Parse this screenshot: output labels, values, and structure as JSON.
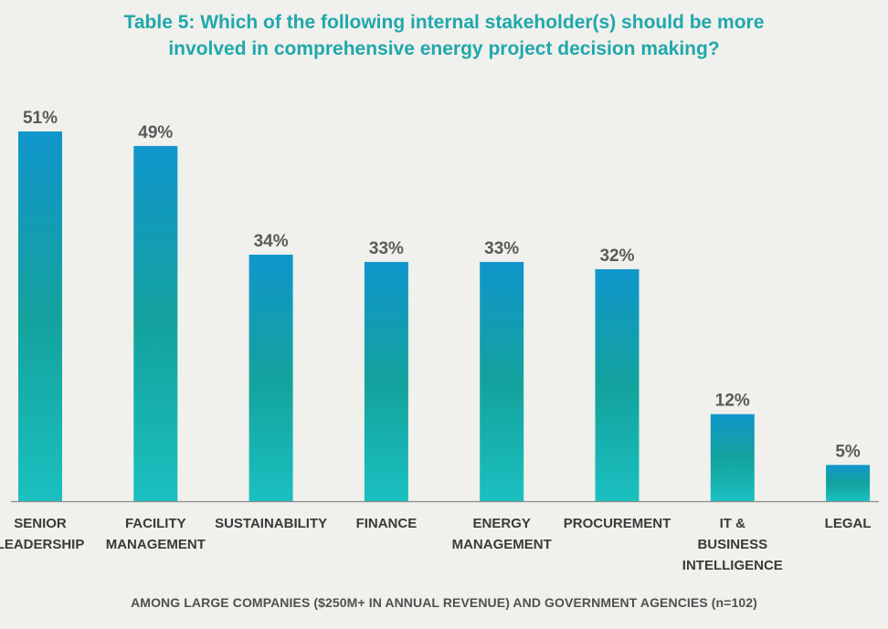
{
  "title_lines": [
    "Table 5: Which of the following internal stakeholder(s) should be more",
    "involved in comprehensive energy project decision making?"
  ],
  "footnote": "AMONG LARGE COMPANIES ($250M+ IN ANNUAL REVENUE) AND GOVERNMENT AGENCIES  (n=102)",
  "colors": {
    "title": "#1fa8ac",
    "bar_top": "#1096cc",
    "bar_mid": "#13a29d",
    "bar_bottom": "#1bc0c0",
    "value_label": "#5a5a5a",
    "category_label": "#3a3a3a",
    "baseline": "#8c8c8c"
  },
  "chart_data": {
    "type": "bar",
    "title": "Table 5: Which of the following internal stakeholder(s) should be more involved in comprehensive energy project decision making?",
    "categories": [
      [
        "SENIOR",
        "LEADERSHIP"
      ],
      [
        "FACILITY",
        "MANAGEMENT"
      ],
      [
        "SUSTAINABILITY"
      ],
      [
        "FINANCE"
      ],
      [
        "ENERGY",
        "MANAGEMENT"
      ],
      [
        "PROCUREMENT"
      ],
      [
        "IT &",
        "BUSINESS",
        "INTELLIGENCE"
      ],
      [
        "LEGAL"
      ]
    ],
    "values": [
      51,
      49,
      34,
      33,
      33,
      32,
      12,
      5
    ],
    "value_labels": [
      "51%",
      "49%",
      "34%",
      "33%",
      "33%",
      "32%",
      "12%",
      "5%"
    ],
    "xlabel": "",
    "ylabel": "",
    "ylim": [
      0,
      51
    ],
    "grid": false,
    "legend": "none"
  }
}
